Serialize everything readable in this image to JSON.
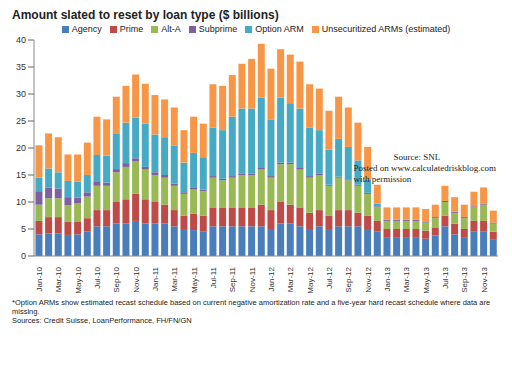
{
  "chart_data": {
    "type": "bar",
    "title": "Amount slated to reset by loan type ($ billions)",
    "stacked": true,
    "grid": false,
    "legend": "top",
    "categories": [
      "Jan-10",
      null,
      "Mar-10",
      null,
      "May-10",
      null,
      "Jul-10",
      null,
      "Sep-10",
      null,
      "Nov-10",
      null,
      "Jan-11",
      null,
      "Mar-11",
      null,
      "May-11",
      null,
      "Jul-11",
      null,
      "Sep-11",
      null,
      "Nov-11",
      null,
      "Jan-12",
      null,
      "Mar-12",
      null,
      "May-12",
      null,
      "Jul-12",
      null,
      "Sep-12",
      null,
      "Nov-12",
      null,
      "Jan-13",
      null,
      "Mar-13",
      null,
      "May-13",
      null,
      "Jul-13",
      null,
      "Sep-13",
      null,
      "Nov-13",
      null
    ],
    "ylim": [
      0,
      40
    ],
    "yticks": [
      0,
      5,
      10,
      15,
      20,
      25,
      30,
      35,
      40
    ],
    "series": [
      {
        "name": "Agency",
        "color": "#4a7ebb",
        "values": [
          4,
          4.2,
          4.2,
          3.9,
          4,
          4.5,
          5.5,
          5.5,
          6,
          6,
          6.5,
          6,
          6,
          6,
          5.5,
          5,
          4.8,
          4.5,
          5.5,
          5.5,
          5.5,
          5.5,
          5.5,
          5.5,
          5,
          6,
          6,
          5.5,
          5,
          5.5,
          5,
          5.5,
          5.5,
          5.5,
          5,
          4.5,
          3.5,
          3.5,
          3.5,
          3.5,
          3.2,
          3.8,
          5.5,
          4,
          3.5,
          4.5,
          4.5,
          3
        ]
      },
      {
        "name": "Prime",
        "color": "#be4b48",
        "values": [
          2.5,
          3,
          3,
          2.5,
          2.3,
          2.5,
          3,
          3,
          4,
          4.5,
          5,
          4.5,
          4,
          3.5,
          3,
          2.5,
          3,
          3,
          3.5,
          3.5,
          3.5,
          3.5,
          3.5,
          4,
          3.5,
          4,
          3.5,
          3.5,
          3,
          3,
          2.5,
          3,
          3,
          2.5,
          2.5,
          2,
          1.5,
          1.5,
          1.5,
          1.5,
          1.5,
          1.5,
          2,
          2,
          1.5,
          2,
          2,
          1.5
        ]
      },
      {
        "name": "Alt-A",
        "color": "#98b954",
        "values": [
          3,
          3.5,
          3.5,
          3,
          3.5,
          4,
          4.5,
          4.5,
          5.5,
          6,
          6,
          5.5,
          5,
          5,
          4.5,
          4,
          4.5,
          4.5,
          5.5,
          5,
          5.5,
          6,
          6,
          6.5,
          6,
          7,
          7.5,
          7,
          6.5,
          6.5,
          5.5,
          6,
          5.5,
          5,
          4,
          2.5,
          1.5,
          1.5,
          1.5,
          1.5,
          1.5,
          1.7,
          2.5,
          2,
          2,
          2.5,
          3,
          1.5
        ]
      },
      {
        "name": "Subprime",
        "color": "#7d60a0",
        "values": [
          2.5,
          2,
          1.8,
          1.5,
          1,
          0.8,
          0.7,
          0.6,
          0.6,
          0.7,
          0.6,
          0.5,
          0.5,
          0.5,
          0.4,
          0.3,
          0.3,
          0.3,
          0.3,
          0.3,
          0.3,
          0.3,
          0.3,
          0.3,
          0.3,
          0.3,
          0.3,
          0.3,
          0.3,
          0.3,
          0.2,
          0.2,
          0.2,
          0.2,
          0.2,
          0.2,
          0.2,
          0.2,
          0.2,
          0.2,
          0.2,
          0.2,
          0.2,
          0.2,
          0.2,
          0.2,
          0.2,
          0.2
        ]
      },
      {
        "name": "Option ARM",
        "color": "#46aac5",
        "values": [
          2.5,
          3.5,
          3,
          3,
          3,
          3.2,
          5,
          5,
          6.5,
          7.5,
          7.5,
          8,
          7,
          7,
          7,
          5.5,
          6.5,
          6,
          9,
          9,
          11,
          12,
          12,
          13,
          10.5,
          12,
          11,
          11,
          9,
          8,
          6.5,
          7,
          6,
          4.5,
          2.5,
          0.5,
          0,
          0,
          0,
          0,
          0,
          0,
          0,
          0,
          0,
          0,
          0,
          0
        ]
      },
      {
        "name": "Unsecuritized ARMs (estimated)",
        "color": "#f79646",
        "values": [
          6,
          6.5,
          6.5,
          4.9,
          5,
          6,
          7.1,
          6.7,
          6.9,
          6.8,
          8,
          7.4,
          7.3,
          7,
          7.1,
          6,
          6.7,
          6.2,
          8,
          8.2,
          7.7,
          8.3,
          9.2,
          10,
          9.4,
          9,
          9,
          8.7,
          8,
          7.7,
          7.2,
          7.8,
          7.3,
          7,
          6,
          3.5,
          2.3,
          2.3,
          2.3,
          2.3,
          2.3,
          2.3,
          2.8,
          2.7,
          2.3,
          2.7,
          3,
          2.2
        ]
      }
    ],
    "annotations": [
      "Source: SNL",
      "Posted on www.calculatedriskblog.com",
      "with permission"
    ],
    "footnotes": [
      "*Option ARMs show estimated recast schedule based on current negative amortization rate and a five-year hard recast schedule where data are missing.",
      "Sources: Credit Suisse, LoanPerformance, FH/FN/GN"
    ]
  }
}
